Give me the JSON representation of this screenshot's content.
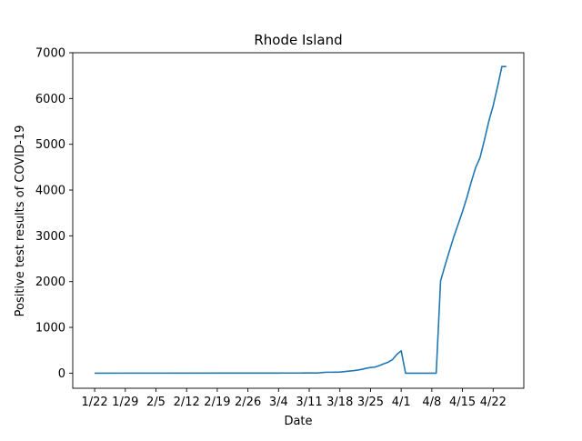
{
  "chart_data": {
    "type": "line",
    "title": "Rhode Island",
    "xlabel": "Date",
    "ylabel": "Positive test results of COVID-19",
    "x_ticks": [
      "1/22",
      "1/29",
      "2/5",
      "2/12",
      "2/19",
      "2/26",
      "3/4",
      "3/11",
      "3/18",
      "3/25",
      "4/1",
      "4/8",
      "4/15",
      "4/22"
    ],
    "y_ticks": [
      0,
      1000,
      2000,
      3000,
      4000,
      5000,
      6000,
      7000
    ],
    "ylim": [
      -330,
      7000
    ],
    "xlim": [
      "1/17",
      "4/29"
    ],
    "grid": false,
    "colors": {
      "line": "#1f77b4",
      "axes": "#000000",
      "background": "#ffffff"
    },
    "series": [
      {
        "x": [
          "1/22",
          "2/29",
          "3/1",
          "3/2",
          "3/3",
          "3/4",
          "3/5",
          "3/6",
          "3/7",
          "3/8",
          "3/9",
          "3/10",
          "3/11",
          "3/12",
          "3/13",
          "3/14",
          "3/15",
          "3/16",
          "3/17",
          "3/18",
          "3/19",
          "3/20",
          "3/21",
          "3/22",
          "3/23",
          "3/24",
          "3/25",
          "3/26",
          "3/27",
          "3/28",
          "3/29",
          "3/30",
          "3/31",
          "4/1",
          "4/2",
          "4/3",
          "4/4",
          "4/5",
          "4/6",
          "4/7",
          "4/8",
          "4/9",
          "4/10",
          "4/11",
          "4/12",
          "4/13",
          "4/14",
          "4/15",
          "4/16",
          "4/17",
          "4/18",
          "4/19",
          "4/20",
          "4/21",
          "4/22",
          "4/23",
          "4/24",
          "4/25"
        ],
        "y": [
          0,
          2,
          2,
          2,
          2,
          2,
          3,
          3,
          3,
          3,
          3,
          5,
          5,
          5,
          5,
          14,
          20,
          20,
          21,
          23,
          33,
          44,
          54,
          66,
          83,
          106,
          124,
          132,
          165,
          203,
          239,
          294,
          408,
          488,
          0,
          0,
          0,
          0,
          0,
          0,
          0,
          0,
          2015,
          2349,
          2665,
          2976,
          3251,
          3529,
          3837,
          4177,
          4491,
          4706,
          5090,
          5500,
          5841,
          6256,
          6699,
          6699
        ]
      }
    ]
  }
}
